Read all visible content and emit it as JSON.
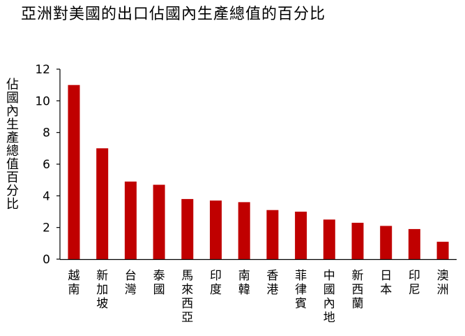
{
  "chart_data": {
    "type": "bar",
    "title": "亞洲對美國的出口佔國內生產總值的百分比",
    "xlabel": "",
    "ylabel": "佔國內生產總值百分比",
    "categories": [
      "越南",
      "新加坡",
      "台灣",
      "泰國",
      "馬來西亞",
      "印度",
      "南韓",
      "香港",
      "菲律賓",
      "中國內地",
      "新西蘭",
      "日本",
      "印尼",
      "澳洲"
    ],
    "values": [
      11.0,
      7.0,
      4.9,
      4.7,
      3.8,
      3.7,
      3.6,
      3.1,
      3.0,
      2.5,
      2.3,
      2.1,
      1.9,
      1.1
    ],
    "ylim": [
      0,
      12
    ],
    "yticks": [
      0,
      2,
      4,
      6,
      8,
      10,
      12
    ],
    "grid": false,
    "legend": "none",
    "bar_color": "#c00000"
  }
}
